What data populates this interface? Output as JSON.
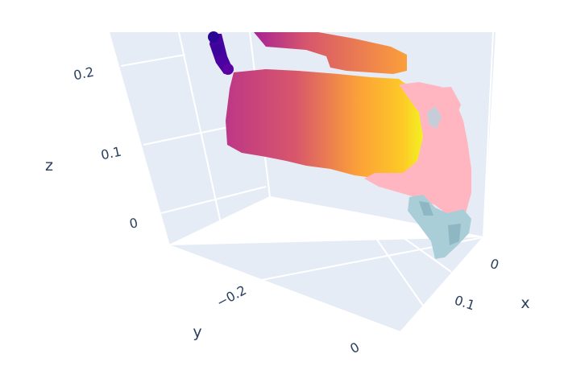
{
  "chart_data": {
    "type": "scatter3d",
    "axes": {
      "x": {
        "label": "x",
        "ticks": [
          "0",
          "0.1"
        ]
      },
      "y": {
        "label": "y",
        "ticks": [
          "−0.2",
          "0"
        ]
      },
      "z": {
        "label": "z",
        "ticks": [
          "0",
          "0.1",
          "0.2"
        ]
      }
    },
    "grid": true,
    "legend": "none",
    "colors": {
      "pane": "#e5ecf6",
      "grid": "#ffffff",
      "text": "#2a3f5f",
      "hand_mesh": "#ffb6c1",
      "fingertip_mesh": "#a9ced8",
      "colorscale": [
        "#0d0887",
        "#46039f",
        "#7201a8",
        "#9c179e",
        "#bd3786",
        "#d8576b",
        "#ed7953",
        "#fb9f3a",
        "#fdca26",
        "#f0f921"
      ]
    },
    "series": [
      {
        "kind": "object-point-cloud",
        "color_by": "x",
        "regions": [
          {
            "region": "thin-strip",
            "x_range": [
              -0.05,
              0.02
            ],
            "y_range": [
              -0.35,
              -0.15
            ],
            "z_range": [
              0.23,
              0.26
            ]
          },
          {
            "region": "top-band",
            "x_range": [
              0.0,
              0.1
            ],
            "y_range": [
              -0.2,
              -0.05
            ],
            "z_range": [
              0.2,
              0.24
            ]
          },
          {
            "region": "main-face",
            "x_range": [
              0.0,
              0.13
            ],
            "y_range": [
              -0.25,
              0.0
            ],
            "z_range": [
              0.08,
              0.2
            ]
          }
        ]
      },
      {
        "kind": "hand-mesh",
        "x_range": [
          0.1,
          0.14
        ],
        "y_range": [
          -0.05,
          0.05
        ],
        "z_range": [
          0.02,
          0.18
        ]
      },
      {
        "kind": "fingertip-mesh",
        "x_range": [
          0.0,
          0.05
        ],
        "y_range": [
          0.0,
          0.05
        ],
        "z_range": [
          -0.02,
          0.02
        ]
      }
    ]
  }
}
